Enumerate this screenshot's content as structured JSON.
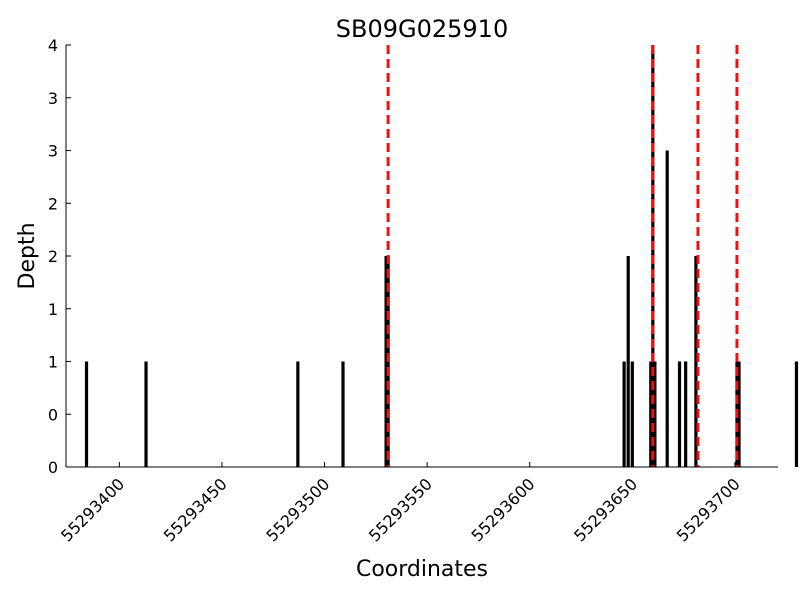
{
  "chart_data": {
    "type": "bar",
    "title": "SB09G025910",
    "xlabel": "Coordinates",
    "ylabel": "Depth",
    "xlim": [
      55293374,
      55293721
    ],
    "ylim": [
      0,
      4
    ],
    "x_ticks": [
      55293400,
      55293450,
      55293500,
      55293550,
      55293600,
      55293650,
      55293700
    ],
    "y_ticks": [
      0,
      0.5,
      1,
      1.5,
      2,
      2.5,
      3,
      3.5,
      4
    ],
    "y_tick_labels": [
      "0",
      "0",
      "1",
      "1",
      "2",
      "2",
      "3",
      "3",
      "4"
    ],
    "bars": {
      "x": [
        55293384,
        55293413,
        55293487,
        55293509,
        55293530,
        55293531,
        55293646,
        55293648,
        55293650,
        55293659,
        55293660,
        55293661,
        55293667,
        55293673,
        55293676,
        55293681,
        55293701,
        55293702,
        55293730
      ],
      "values": [
        1,
        1,
        1,
        1,
        2,
        2,
        1,
        2,
        1,
        1,
        4,
        1,
        3,
        1,
        1,
        2,
        1,
        1,
        1
      ]
    },
    "reference_lines": {
      "x": [
        55293531,
        55293660,
        55293682,
        55293701
      ],
      "color": "#ee1111",
      "style": "dashed"
    },
    "grid": false,
    "bar_color": "#000000"
  }
}
